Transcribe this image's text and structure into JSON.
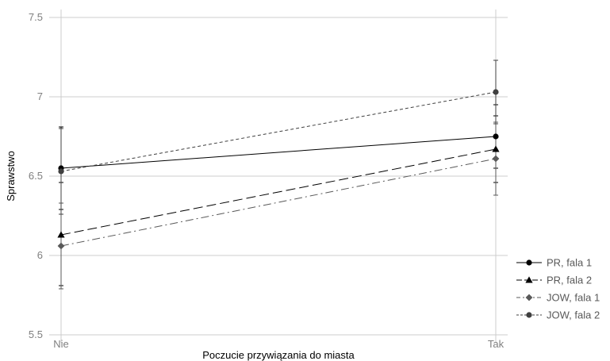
{
  "chart_data": {
    "type": "line",
    "title": "",
    "xlabel": "Poczucie przywiązania do miasta",
    "ylabel": "Sprawstwo",
    "categories": [
      "Nie",
      "Tak"
    ],
    "ylim": [
      5.45,
      7.55
    ],
    "yticks": [
      5.5,
      6,
      6.5,
      7,
      7.5
    ],
    "ytick_labels": [
      "5.5",
      "6",
      "6.5",
      "7",
      "7.5"
    ],
    "grid": true,
    "legend_position": "bottom-right",
    "series": [
      {
        "name": "PR, fala 1",
        "values": [
          6.55,
          6.75
        ],
        "err_low": [
          6.29,
          6.55
        ],
        "err_high": [
          6.81,
          6.95
        ],
        "marker": "circle",
        "dash": "solid",
        "color": "#000000"
      },
      {
        "name": "PR, fala 2",
        "values": [
          6.13,
          6.67
        ],
        "err_low": [
          5.81,
          6.46
        ],
        "err_high": [
          6.46,
          6.88
        ],
        "marker": "triangle",
        "dash": "long-dash",
        "color": "#000000"
      },
      {
        "name": "JOW, fala 1",
        "values": [
          6.06,
          6.61
        ],
        "err_low": [
          5.79,
          6.38
        ],
        "err_high": [
          6.33,
          6.84
        ],
        "marker": "diamond",
        "dash": "dash-dot",
        "color": "#595959"
      },
      {
        "name": "JOW, fala 2",
        "values": [
          6.53,
          7.03
        ],
        "err_low": [
          6.26,
          6.83
        ],
        "err_high": [
          6.8,
          7.23
        ],
        "marker": "circle",
        "dash": "short-dash",
        "color": "#404040"
      }
    ]
  }
}
